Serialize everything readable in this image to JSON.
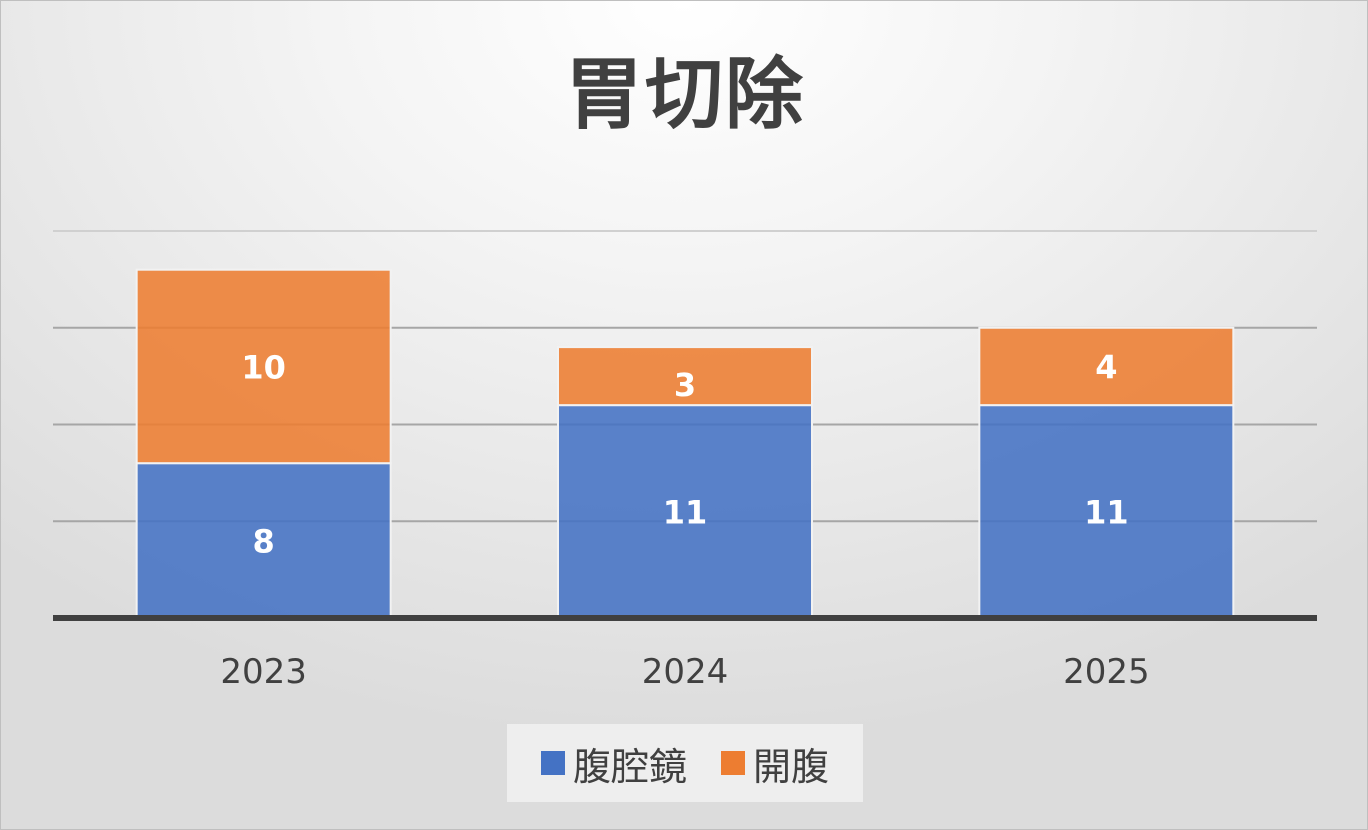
{
  "chart_data": {
    "type": "bar",
    "stacked": true,
    "title": "胃切除",
    "categories": [
      "2023",
      "2024",
      "2025"
    ],
    "series": [
      {
        "name": "腹腔鏡",
        "values": [
          8,
          11,
          11
        ],
        "color": "#4472C4"
      },
      {
        "name": "開腹",
        "values": [
          10,
          3,
          4
        ],
        "color": "#ED7D31"
      }
    ],
    "ylim": [
      0,
      20
    ],
    "grid": true,
    "legend": "bottom",
    "data_labels": true
  }
}
